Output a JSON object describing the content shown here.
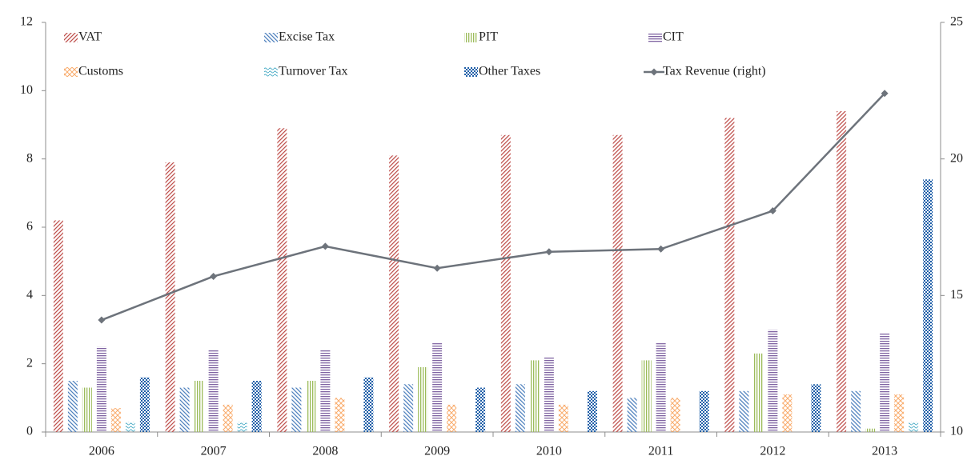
{
  "chart_data": {
    "type": "bar",
    "categories": [
      "2006",
      "2007",
      "2008",
      "2009",
      "2010",
      "2011",
      "2012",
      "2013"
    ],
    "ylim": [
      0,
      12
    ],
    "yticks": [
      0,
      2,
      4,
      6,
      8,
      10,
      12
    ],
    "y2lim": [
      10,
      25
    ],
    "y2ticks": [
      10,
      15,
      20,
      25
    ],
    "grid": false,
    "legend": "top-left",
    "series": [
      {
        "name": "VAT",
        "color": "#c0504d",
        "pattern": "diagonal-up",
        "values": [
          6.2,
          7.9,
          8.9,
          8.1,
          8.7,
          8.7,
          9.2,
          9.4
        ]
      },
      {
        "name": "Excise Tax",
        "color": "#4f81bd",
        "pattern": "diagonal-down",
        "values": [
          1.5,
          1.3,
          1.3,
          1.4,
          1.4,
          1.0,
          1.2,
          1.2
        ]
      },
      {
        "name": "PIT",
        "color": "#9bbb59",
        "pattern": "vertical",
        "values": [
          1.3,
          1.5,
          1.5,
          1.9,
          2.1,
          2.1,
          2.3,
          0.1
        ]
      },
      {
        "name": "CIT",
        "color": "#8064a2",
        "pattern": "horizontal",
        "values": [
          2.5,
          2.4,
          2.4,
          2.6,
          2.2,
          2.6,
          3.0,
          2.9
        ]
      },
      {
        "name": "Customs",
        "color": "#f79646",
        "pattern": "cross",
        "values": [
          0.7,
          0.8,
          1.0,
          0.8,
          0.8,
          1.0,
          1.1,
          1.1
        ]
      },
      {
        "name": "Turnover Tax",
        "color": "#4bacc6",
        "pattern": "wave",
        "values": [
          0.3,
          0.3,
          null,
          null,
          null,
          null,
          null,
          0.3
        ]
      },
      {
        "name": "Other Taxes",
        "color": "#1f5fa8",
        "pattern": "checker",
        "values": [
          1.6,
          1.5,
          1.6,
          1.3,
          1.2,
          1.2,
          1.4,
          7.4
        ]
      },
      {
        "name": "Tax Revenue (right)",
        "color": "#6d737b",
        "type": "line",
        "axis": "y2",
        "values": [
          14.1,
          15.7,
          16.8,
          16.0,
          16.6,
          16.7,
          18.1,
          22.4
        ]
      }
    ]
  }
}
